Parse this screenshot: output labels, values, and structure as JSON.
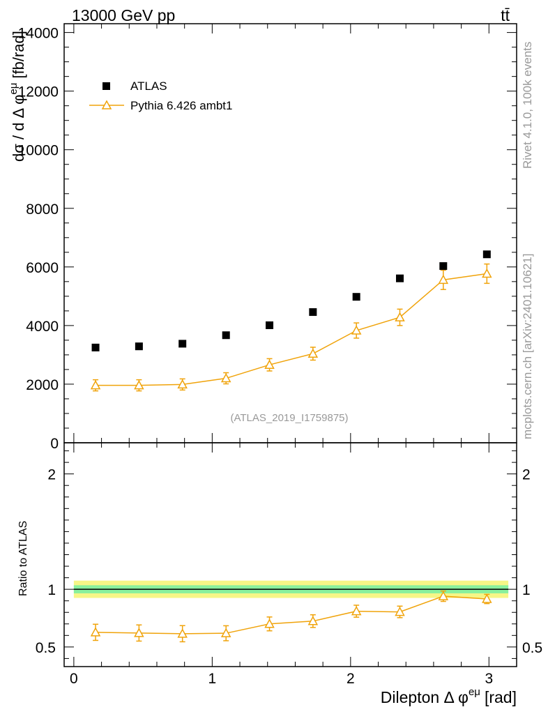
{
  "header": {
    "energy_label": "13000 GeV pp",
    "process_label": "tt̄"
  },
  "side": {
    "rivet_label": "Rivet 4.1.0,  100k events",
    "site_label": "mcplots.cern.ch [arXiv:2401.10621]"
  },
  "analysis_label": "(ATLAS_2019_I1759875)",
  "legend": {
    "atlas": "ATLAS",
    "pythia": "Pythia 6.426 ambt1"
  },
  "colors": {
    "data": "#000000",
    "mc": "#f0a30a",
    "band_inner": "#7df0a0",
    "band_outer": "#f5f57a"
  },
  "chart_data": [
    {
      "type": "scatter",
      "name": "main",
      "ylabel": "dσ / d Δ φ^eμ [fb/rad]",
      "ylabel_main": "dσ / d Δ φ",
      "ylabel_sup": "eμ",
      "ylabel_unit": "[fb/rad]",
      "xlim": [
        -0.07,
        3.2
      ],
      "ylim": [
        0,
        14300
      ],
      "yticks": [
        0,
        2000,
        4000,
        6000,
        8000,
        10000,
        12000,
        14000
      ],
      "ytick_labels": [
        "0",
        "2000",
        "4000",
        "6000",
        "8000",
        "10000",
        "12000",
        "14000"
      ],
      "x": [
        0.157,
        0.471,
        0.785,
        1.1,
        1.414,
        1.728,
        2.042,
        2.356,
        2.67,
        2.985
      ],
      "series": [
        {
          "name": "ATLAS",
          "values": [
            3250,
            3290,
            3380,
            3670,
            4010,
            4460,
            4980,
            5610,
            6030,
            6430
          ]
        },
        {
          "name": "Pythia 6.426 ambt1",
          "values": [
            1960,
            1960,
            1990,
            2200,
            2660,
            3040,
            3830,
            4280,
            5560,
            5770
          ],
          "errors": [
            190,
            190,
            190,
            190,
            210,
            220,
            260,
            280,
            330,
            330
          ]
        }
      ]
    },
    {
      "type": "line",
      "name": "ratio",
      "ylabel": "Ratio to ATLAS",
      "xlabel": "Dilepton Δ φ^eμ [rad]",
      "xlabel_main": "Dilepton Δ φ",
      "xlabel_sup": "eμ",
      "xlabel_unit": "[rad]",
      "xlim": [
        -0.07,
        3.2
      ],
      "ylim": [
        0.33,
        2.27
      ],
      "yticks": [
        0.5,
        1,
        2
      ],
      "ytick_labels": [
        "0.5",
        "1",
        "2"
      ],
      "xticks": [
        0,
        1,
        2,
        3
      ],
      "xtick_labels": [
        "0",
        "1",
        "2",
        "3"
      ],
      "x": [
        0.157,
        0.471,
        0.785,
        1.1,
        1.414,
        1.728,
        2.042,
        2.356,
        2.67,
        2.985
      ],
      "series": [
        {
          "name": "Pythia 6.426 ambt1 / ATLAS",
          "values": [
            0.627,
            0.621,
            0.615,
            0.619,
            0.7,
            0.724,
            0.81,
            0.804,
            0.94,
            0.916
          ],
          "errors": [
            0.07,
            0.07,
            0.07,
            0.065,
            0.06,
            0.055,
            0.052,
            0.05,
            0.045,
            0.04
          ]
        }
      ],
      "band_inner_halfwidth": 0.035,
      "band_outer_halfwidth": 0.075
    }
  ]
}
